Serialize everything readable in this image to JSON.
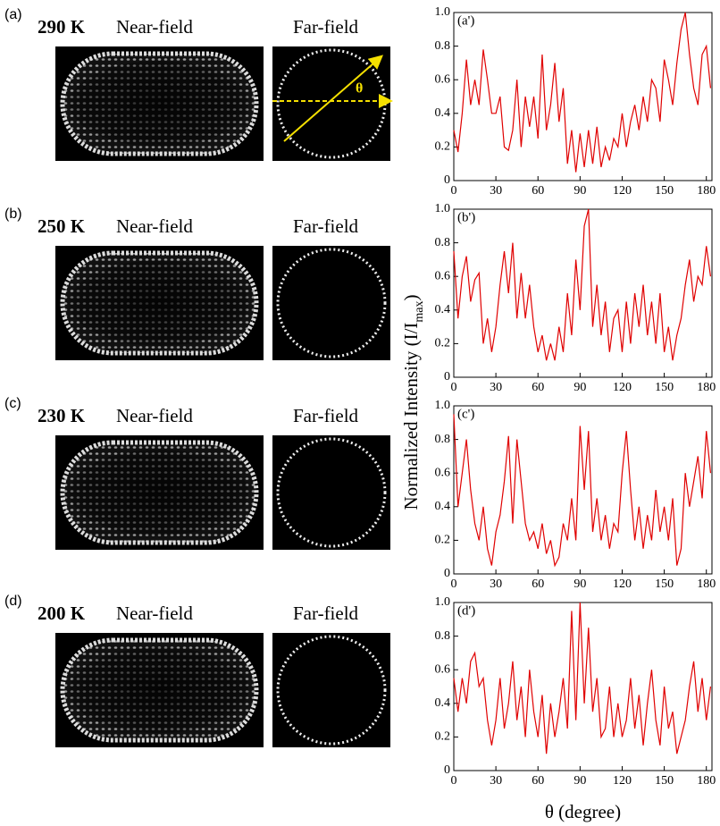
{
  "panels": [
    {
      "label": "(a)",
      "temperature": "290 K",
      "near_field": "Near-field",
      "far_field": "Far-field"
    },
    {
      "label": "(b)",
      "temperature": "250 K",
      "near_field": "Near-field",
      "far_field": "Far-field"
    },
    {
      "label": "(c)",
      "temperature": "230 K",
      "near_field": "Near-field",
      "far_field": "Far-field"
    },
    {
      "label": "(d)",
      "temperature": "200 K",
      "near_field": "Near-field",
      "far_field": "Far-field"
    }
  ],
  "theta_annotation": "θ",
  "shared_ylabel": {
    "main": "Normalized Intensity (I/I",
    "sub": "max",
    "close": ")"
  },
  "chart_data": [
    {
      "type": "line",
      "annotation": "(a')",
      "color": "#e00000",
      "x": [
        0,
        3,
        6,
        9,
        12,
        15,
        18,
        21,
        24,
        27,
        30,
        33,
        36,
        39,
        42,
        45,
        48,
        51,
        54,
        57,
        60,
        63,
        66,
        69,
        72,
        75,
        78,
        81,
        84,
        87,
        90,
        93,
        96,
        99,
        102,
        105,
        108,
        111,
        114,
        117,
        120,
        123,
        126,
        129,
        132,
        135,
        138,
        141,
        144,
        147,
        150,
        153,
        156,
        159,
        162,
        165,
        168,
        171,
        174,
        177,
        180,
        183
      ],
      "values": [
        0.3,
        0.17,
        0.4,
        0.72,
        0.45,
        0.6,
        0.45,
        0.78,
        0.6,
        0.4,
        0.4,
        0.5,
        0.2,
        0.18,
        0.3,
        0.6,
        0.2,
        0.5,
        0.32,
        0.5,
        0.25,
        0.75,
        0.3,
        0.45,
        0.7,
        0.35,
        0.55,
        0.1,
        0.3,
        0.05,
        0.28,
        0.08,
        0.3,
        0.1,
        0.32,
        0.08,
        0.2,
        0.12,
        0.25,
        0.2,
        0.4,
        0.2,
        0.35,
        0.45,
        0.3,
        0.5,
        0.35,
        0.6,
        0.55,
        0.35,
        0.72,
        0.6,
        0.45,
        0.7,
        0.9,
        1.0,
        0.75,
        0.55,
        0.45,
        0.75,
        0.8,
        0.55
      ],
      "xlim": [
        0,
        184
      ],
      "ylim": [
        0,
        1
      ],
      "xticks": [
        0,
        30,
        60,
        90,
        120,
        150,
        180
      ],
      "yticks": [
        0,
        0.2,
        0.4,
        0.6,
        0.8,
        {
          "value": 1,
          "label": "1.0"
        }
      ]
    },
    {
      "type": "line",
      "annotation": "(b')",
      "color": "#e00000",
      "x": [
        0,
        3,
        6,
        9,
        12,
        15,
        18,
        21,
        24,
        27,
        30,
        33,
        36,
        39,
        42,
        45,
        48,
        51,
        54,
        57,
        60,
        63,
        66,
        69,
        72,
        75,
        78,
        81,
        84,
        87,
        90,
        93,
        96,
        99,
        102,
        105,
        108,
        111,
        114,
        117,
        120,
        123,
        126,
        129,
        132,
        135,
        138,
        141,
        144,
        147,
        150,
        153,
        156,
        159,
        162,
        165,
        168,
        171,
        174,
        177,
        180,
        183
      ],
      "values": [
        0.75,
        0.35,
        0.6,
        0.72,
        0.45,
        0.58,
        0.62,
        0.2,
        0.35,
        0.15,
        0.3,
        0.55,
        0.75,
        0.5,
        0.8,
        0.35,
        0.62,
        0.35,
        0.55,
        0.3,
        0.15,
        0.25,
        0.1,
        0.2,
        0.1,
        0.3,
        0.15,
        0.5,
        0.25,
        0.7,
        0.4,
        0.9,
        1.0,
        0.3,
        0.55,
        0.25,
        0.45,
        0.15,
        0.35,
        0.4,
        0.15,
        0.45,
        0.2,
        0.5,
        0.3,
        0.55,
        0.25,
        0.45,
        0.2,
        0.5,
        0.15,
        0.3,
        0.1,
        0.25,
        0.35,
        0.55,
        0.7,
        0.45,
        0.6,
        0.55,
        0.78,
        0.6
      ],
      "xlim": [
        0,
        184
      ],
      "ylim": [
        0,
        1
      ],
      "xticks": [
        0,
        30,
        60,
        90,
        120,
        150,
        180
      ],
      "yticks": [
        0,
        0.2,
        0.4,
        0.6,
        0.8,
        {
          "value": 1,
          "label": "1.0"
        }
      ]
    },
    {
      "type": "line",
      "annotation": "(c')",
      "color": "#e00000",
      "x": [
        0,
        3,
        6,
        9,
        12,
        15,
        18,
        21,
        24,
        27,
        30,
        33,
        36,
        39,
        42,
        45,
        48,
        51,
        54,
        57,
        60,
        63,
        66,
        69,
        72,
        75,
        78,
        81,
        84,
        87,
        90,
        93,
        96,
        99,
        102,
        105,
        108,
        111,
        114,
        117,
        120,
        123,
        126,
        129,
        132,
        135,
        138,
        141,
        144,
        147,
        150,
        153,
        156,
        159,
        162,
        165,
        168,
        171,
        174,
        177,
        180,
        183
      ],
      "values": [
        0.95,
        0.4,
        0.6,
        0.8,
        0.5,
        0.3,
        0.2,
        0.4,
        0.15,
        0.05,
        0.25,
        0.35,
        0.55,
        0.82,
        0.3,
        0.8,
        0.55,
        0.3,
        0.2,
        0.25,
        0.15,
        0.3,
        0.12,
        0.2,
        0.05,
        0.1,
        0.3,
        0.2,
        0.45,
        0.2,
        0.88,
        0.5,
        0.85,
        0.25,
        0.45,
        0.2,
        0.35,
        0.15,
        0.3,
        0.25,
        0.6,
        0.85,
        0.5,
        0.2,
        0.4,
        0.15,
        0.35,
        0.2,
        0.5,
        0.25,
        0.4,
        0.2,
        0.45,
        0.05,
        0.15,
        0.6,
        0.4,
        0.55,
        0.7,
        0.45,
        0.85,
        0.6
      ],
      "xlim": [
        0,
        184
      ],
      "ylim": [
        0,
        1
      ],
      "xticks": [
        0,
        30,
        60,
        90,
        120,
        150,
        180
      ],
      "yticks": [
        0,
        0.2,
        0.4,
        0.6,
        0.8,
        {
          "value": 1,
          "label": "1.0"
        }
      ]
    },
    {
      "type": "line",
      "annotation": "(d')",
      "color": "#e00000",
      "xlabel": "θ (degree)",
      "x": [
        0,
        3,
        6,
        9,
        12,
        15,
        18,
        21,
        24,
        27,
        30,
        33,
        36,
        39,
        42,
        45,
        48,
        51,
        54,
        57,
        60,
        63,
        66,
        69,
        72,
        75,
        78,
        81,
        84,
        87,
        90,
        93,
        96,
        99,
        102,
        105,
        108,
        111,
        114,
        117,
        120,
        123,
        126,
        129,
        132,
        135,
        138,
        141,
        144,
        147,
        150,
        153,
        156,
        159,
        162,
        165,
        168,
        171,
        174,
        177,
        180,
        183
      ],
      "values": [
        0.55,
        0.35,
        0.55,
        0.4,
        0.65,
        0.7,
        0.5,
        0.55,
        0.3,
        0.15,
        0.3,
        0.55,
        0.25,
        0.4,
        0.65,
        0.3,
        0.5,
        0.2,
        0.6,
        0.35,
        0.2,
        0.45,
        0.1,
        0.4,
        0.2,
        0.35,
        0.55,
        0.25,
        0.95,
        0.3,
        1.0,
        0.4,
        0.85,
        0.35,
        0.55,
        0.2,
        0.25,
        0.5,
        0.2,
        0.4,
        0.2,
        0.3,
        0.55,
        0.25,
        0.45,
        0.15,
        0.4,
        0.6,
        0.3,
        0.15,
        0.5,
        0.25,
        0.35,
        0.1,
        0.2,
        0.3,
        0.5,
        0.65,
        0.35,
        0.55,
        0.3,
        0.5
      ],
      "xlim": [
        0,
        184
      ],
      "ylim": [
        0,
        1
      ],
      "xticks": [
        0,
        30,
        60,
        90,
        120,
        150,
        180
      ],
      "yticks": [
        0,
        0.2,
        0.4,
        0.6,
        0.8,
        {
          "value": 1,
          "label": "1.0"
        }
      ]
    }
  ]
}
